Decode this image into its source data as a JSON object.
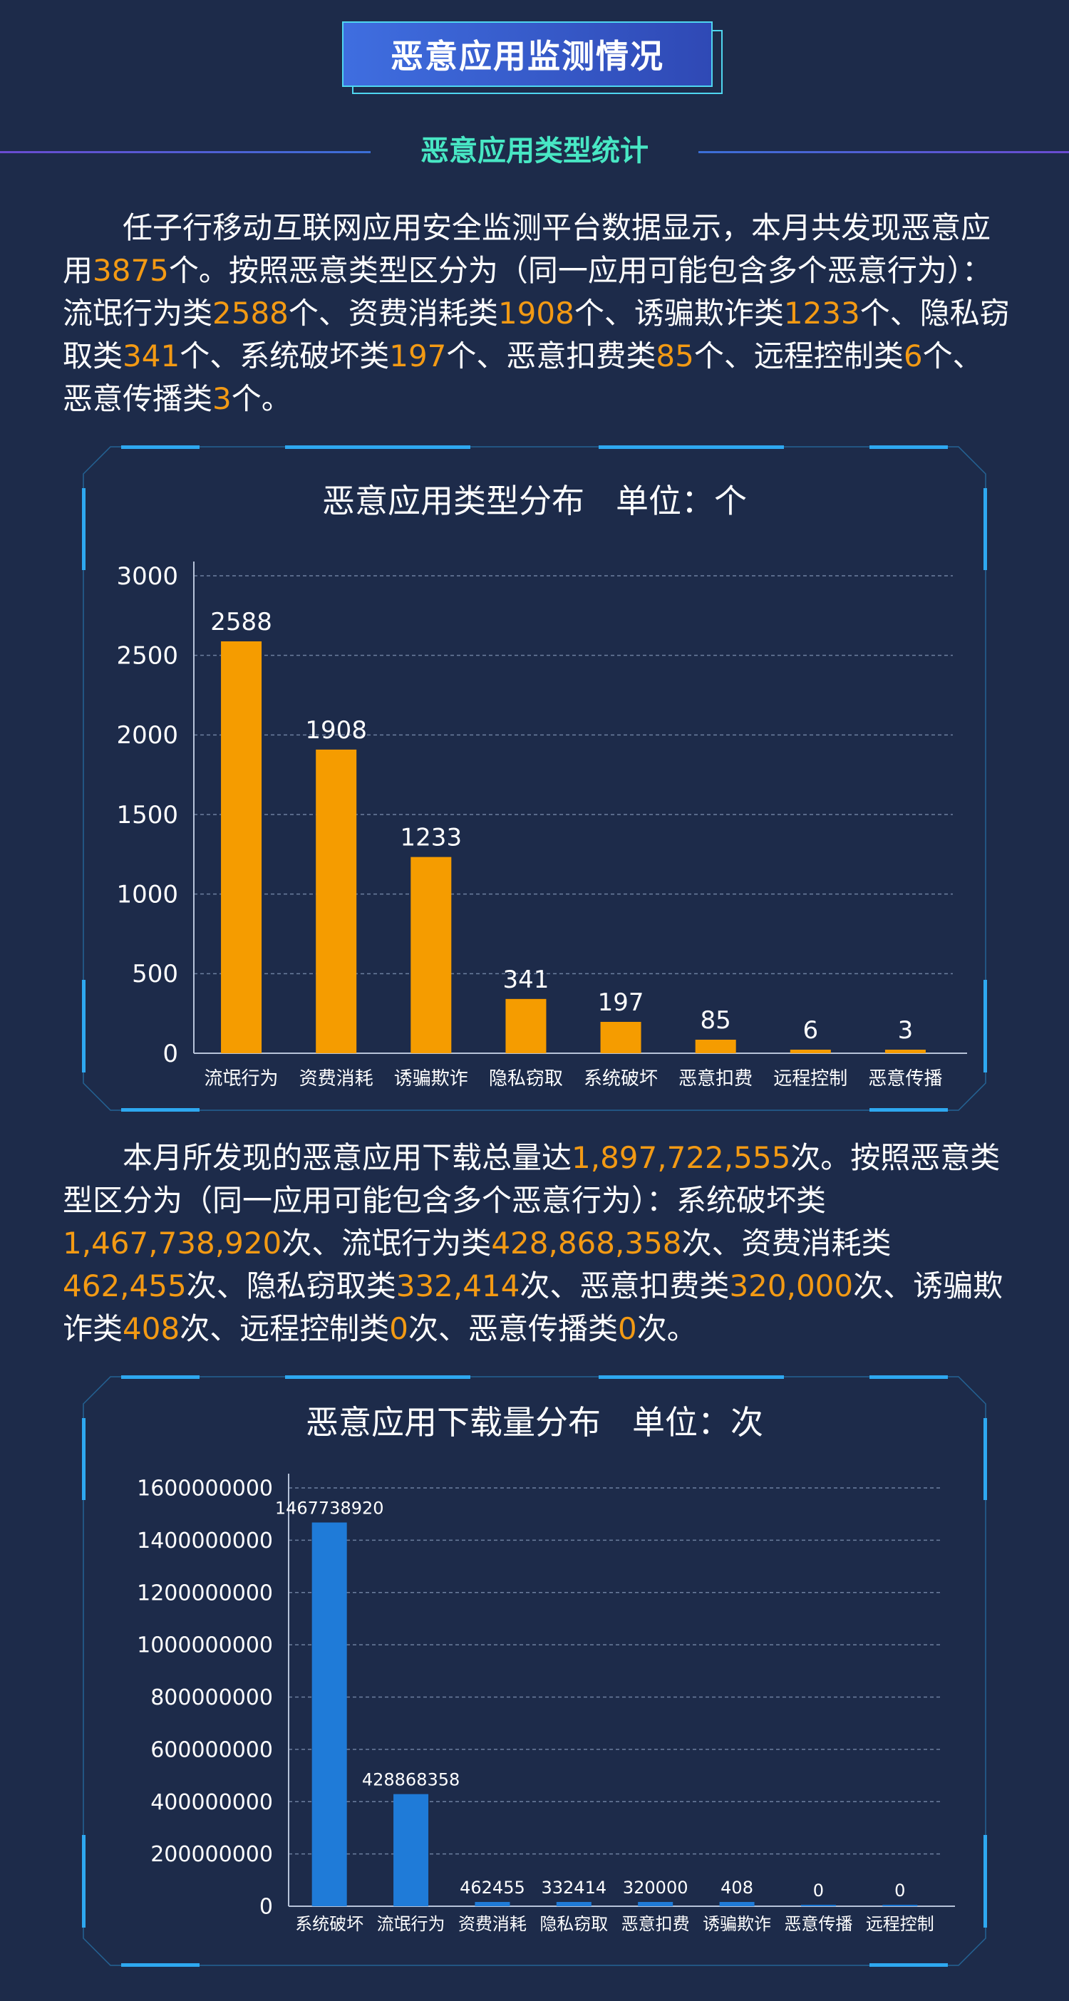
{
  "header": {
    "title": "恶意应用监测情况",
    "section_title": "恶意应用类型统计"
  },
  "paragraph1": {
    "intro": "任子行移动互联网应用安全监测平台数据显示，本月共发现恶意应用",
    "total": "3875",
    "after_total": "个。按照恶意类型区分为（同一应用可能包含多个恶意行为）：",
    "items": [
      {
        "label": "流氓行为类",
        "value": "2588",
        "suffix": "个、"
      },
      {
        "label": "资费消耗类",
        "value": "1908",
        "suffix": "个、"
      },
      {
        "label": "诱骗欺诈类",
        "value": "1233",
        "suffix": "个、"
      },
      {
        "label": "隐私窃取类",
        "value": "341",
        "suffix": "个、"
      },
      {
        "label": "系统破坏类",
        "value": "197",
        "suffix": "个、"
      },
      {
        "label": "恶意扣费类",
        "value": "85",
        "suffix": "个、"
      },
      {
        "label": "远程控制类",
        "value": "6",
        "suffix": "个、"
      },
      {
        "label": "恶意传播类",
        "value": "3",
        "suffix": "个。"
      }
    ]
  },
  "paragraph2": {
    "intro": "本月所发现的恶意应用下载总量达",
    "total": "1,897,722,555",
    "after_total": "次。按照恶意类型区分为（同一应用可能包含多个恶意行为）：",
    "items": [
      {
        "label": "系统破坏类",
        "value": "1,467,738,920",
        "suffix": "次、"
      },
      {
        "label": "流氓行为类",
        "value": "428,868,358",
        "suffix": "次、"
      },
      {
        "label": "资费消耗类",
        "value": "462,455",
        "suffix": "次、"
      },
      {
        "label": "隐私窃取类",
        "value": "332,414",
        "suffix": "次、"
      },
      {
        "label": "恶意扣费类",
        "value": "320,000",
        "suffix": "次、"
      },
      {
        "label": "诱骗欺诈类",
        "value": "408",
        "suffix": "次、"
      },
      {
        "label": "远程控制类",
        "value": "0",
        "suffix": "次、"
      },
      {
        "label": "恶意传播类",
        "value": "0",
        "suffix": "次。"
      }
    ]
  },
  "colors": {
    "bar1": "#f59c00",
    "bar2": "#1f7bd8",
    "highlight": "#f39a14",
    "frame": "#2ea8f0"
  },
  "chart_data": [
    {
      "type": "bar",
      "title": "恶意应用类型分布",
      "unit": "单位：个",
      "categories": [
        "流氓行为",
        "资费消耗",
        "诱骗欺诈",
        "隐私窃取",
        "系统破坏",
        "恶意扣费",
        "远程控制",
        "恶意传播"
      ],
      "values": [
        2588,
        1908,
        1233,
        341,
        197,
        85,
        6,
        3
      ],
      "ylim": [
        0,
        3000
      ],
      "yticks": [
        0,
        500,
        1000,
        1500,
        2000,
        2500,
        3000
      ],
      "grid": true
    },
    {
      "type": "bar",
      "title": "恶意应用下载量分布",
      "unit": "单位：次",
      "categories": [
        "系统破坏",
        "流氓行为",
        "资费消耗",
        "隐私窃取",
        "恶意扣费",
        "诱骗欺诈",
        "恶意传播",
        "远程控制"
      ],
      "values": [
        1467738920,
        428868358,
        462455,
        332414,
        320000,
        408,
        0,
        0
      ],
      "ylim": [
        0,
        1600000000
      ],
      "yticks": [
        0,
        200000000,
        400000000,
        600000000,
        800000000,
        1000000000,
        1200000000,
        1400000000,
        1600000000
      ],
      "grid": true
    }
  ]
}
